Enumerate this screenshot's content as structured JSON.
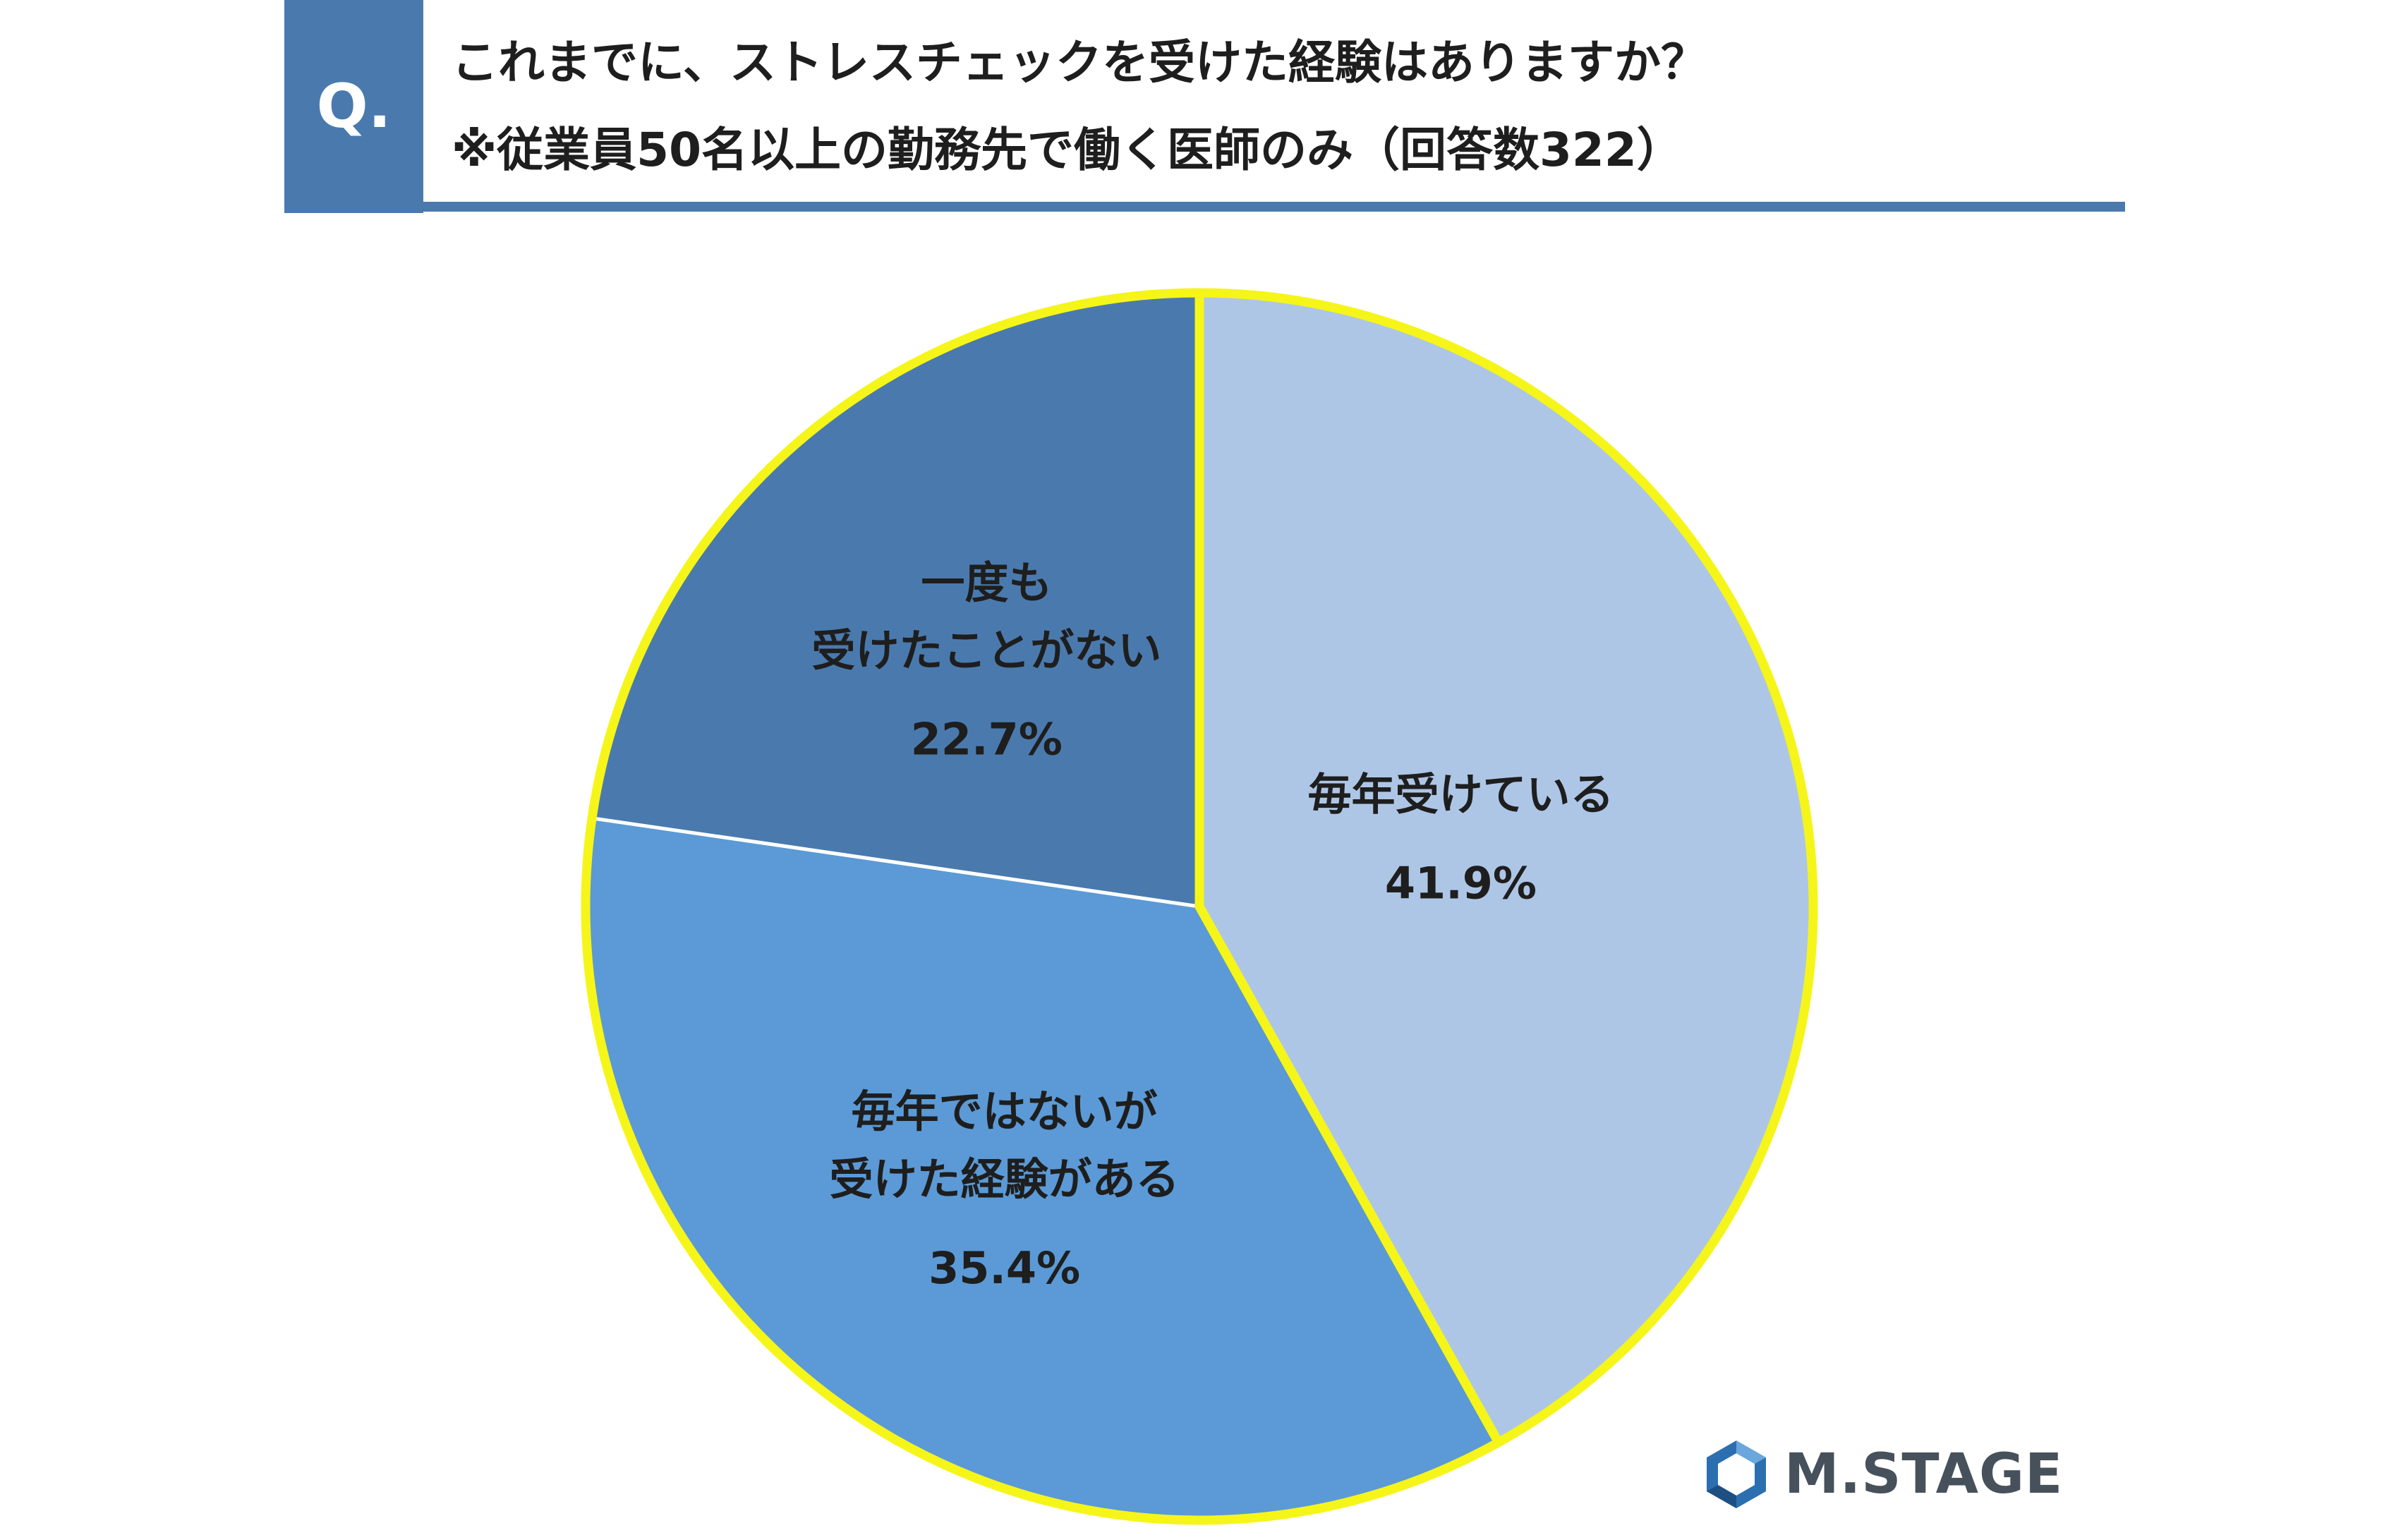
{
  "badge": {
    "label": "Q."
  },
  "title": {
    "line1": "これまでに、ストレスチェックを受けた経験はありますか？",
    "line2": "※従業員50名以上の勤務先で働く医師のみ（回答数322）"
  },
  "chart_data": {
    "type": "pie",
    "title": "これまでに、ストレスチェックを受けた経験はありますか？",
    "subtitle": "※従業員50名以上の勤務先で働く医師のみ（回答数322）",
    "total_responses": 322,
    "start_angle_deg": 0,
    "direction": "clockwise",
    "slices": [
      {
        "label_lines": [
          "毎年受けている"
        ],
        "value": 41.9,
        "value_label": "41.9%",
        "color": "#aec6e6"
      },
      {
        "label_lines": [
          "毎年ではないが",
          "受けた経験がある"
        ],
        "value": 35.4,
        "value_label": "35.4%",
        "color": "#5b9ad6"
      },
      {
        "label_lines": [
          "一度も",
          "受けたことがない"
        ],
        "value": 22.7,
        "value_label": "22.7%",
        "color": "#4a7aad"
      }
    ],
    "highlight_outline_color": "#f5f51a",
    "legend": "none"
  },
  "logo": {
    "text": "M.STAGE"
  }
}
